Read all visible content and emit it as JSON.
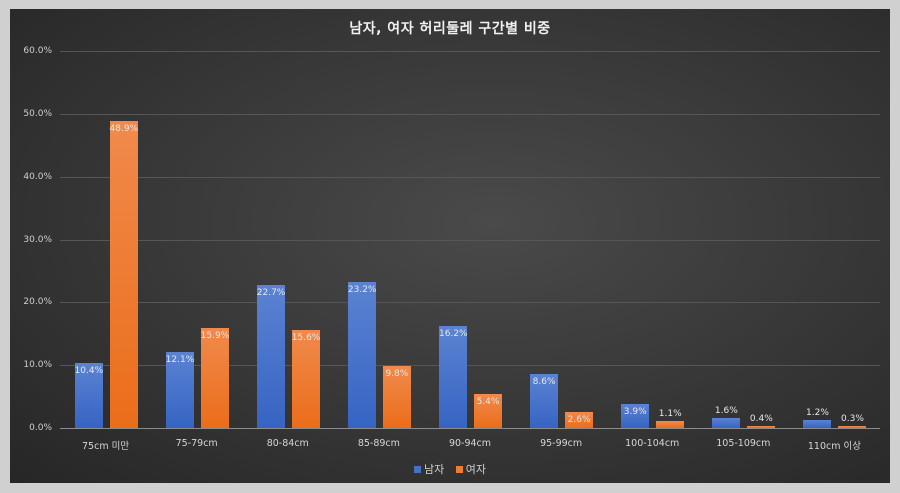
{
  "chart_data": {
    "type": "bar",
    "title": "남자, 여자 허리둘레 구간별 비중",
    "xlabel": "",
    "ylabel": "",
    "ylim": [
      0,
      60
    ],
    "yticks": [
      "0.0%",
      "10.0%",
      "20.0%",
      "30.0%",
      "40.0%",
      "50.0%",
      "60.0%"
    ],
    "grid": true,
    "legend_position": "bottom",
    "categories": [
      "75cm 미만",
      "75-79cm",
      "80-84cm",
      "85-89cm",
      "90-94cm",
      "95-99cm",
      "100-104cm",
      "105-109cm",
      "110cm 이상"
    ],
    "series": [
      {
        "name": "남자",
        "color": "#4472C4",
        "values": [
          10.4,
          12.1,
          22.7,
          23.2,
          16.2,
          8.6,
          3.9,
          1.6,
          1.2
        ],
        "labels": [
          "10.4%",
          "12.1%",
          "22.7%",
          "23.2%",
          "16.2%",
          "8.6%",
          "3.9%",
          "1.6%",
          "1.2%"
        ]
      },
      {
        "name": "여자",
        "color": "#ED7D31",
        "values": [
          48.9,
          15.9,
          15.6,
          9.8,
          5.4,
          2.6,
          1.1,
          0.4,
          0.3
        ],
        "labels": [
          "48.9%",
          "15.9%",
          "15.6%",
          "9.8%",
          "5.4%",
          "2.6%",
          "1.1%",
          "0.4%",
          "0.3%"
        ]
      }
    ]
  },
  "legend": {
    "male": "남자",
    "female": "여자"
  }
}
